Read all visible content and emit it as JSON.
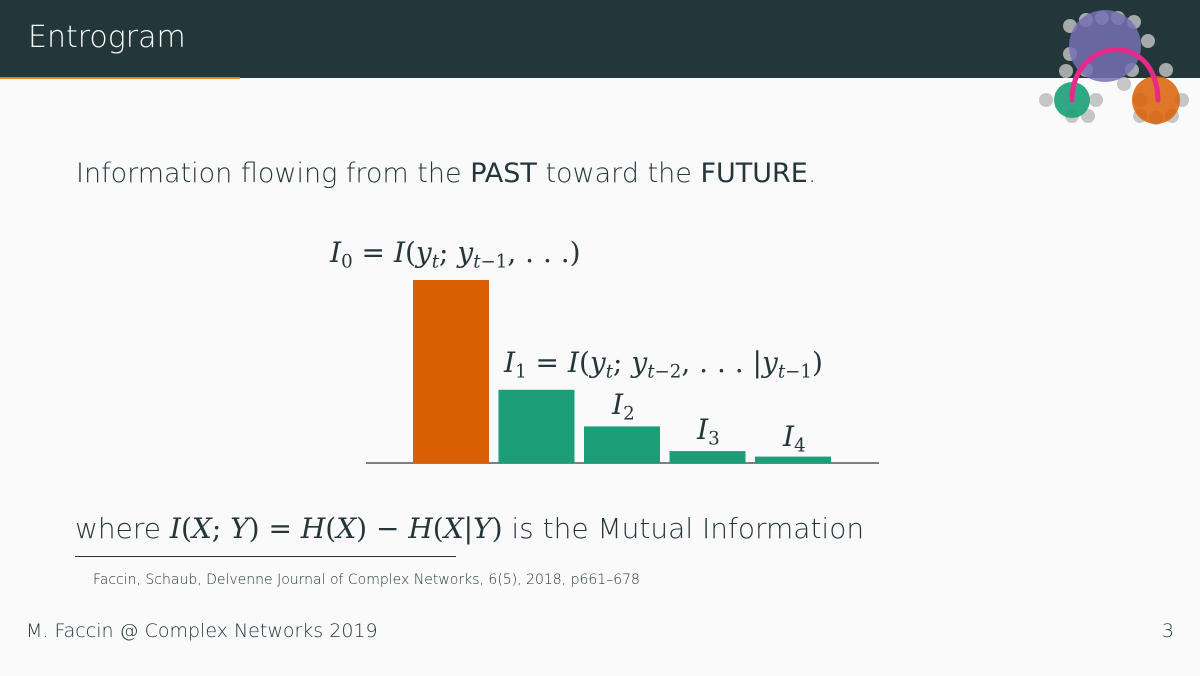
{
  "slide": {
    "title": "Entrogram",
    "intro_text": "Information flowing from the",
    "intro_past": "PAST",
    "intro_middle": "toward the",
    "intro_future": "FUTURE",
    "intro_period": ".",
    "where_prefix": "where",
    "where_suffix": "is the Mutual Information",
    "citation": "Faccin, Schaub, Delvenne Journal of Complex Networks, 6(5), 2018, p661–678",
    "footer_left": "M. Faccin @ Complex Networks 2019",
    "page_number": "3"
  },
  "colors": {
    "header_bg": "#23373b",
    "accent_orange": "#d95f02",
    "accent_green": "#1b9e77",
    "logo_purple": "#7570b3",
    "logo_magenta": "#e7298a",
    "logo_node_gray": "#bdbdbd"
  },
  "chart_data": {
    "type": "bar",
    "categories": [
      "I0",
      "I1",
      "I2",
      "I3",
      "I4"
    ],
    "values": [
      1.0,
      0.4,
      0.2,
      0.065,
      0.035
    ],
    "ylim": [
      0,
      1.0
    ],
    "bar_colors": [
      "#d95f02",
      "#1b9e77",
      "#1b9e77",
      "#1b9e77",
      "#1b9e77"
    ],
    "grid": false,
    "axes": "baseline only",
    "annotations": [
      "I0 = I(yt; yt−1, . . .)",
      "I1 = I(yt; yt−2, . . . |yt−1)",
      "I2",
      "I3",
      "I4"
    ]
  },
  "formula_where": "I(X; Y) = H(X) − H(X|Y)"
}
